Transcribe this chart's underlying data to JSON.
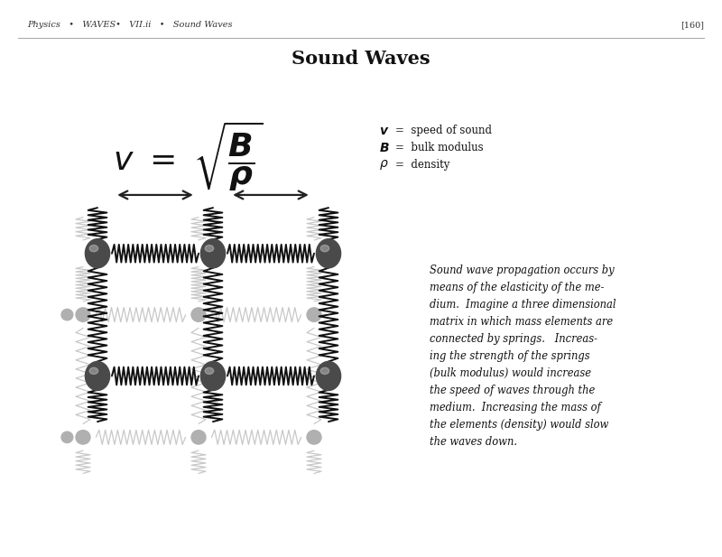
{
  "title": "Sound Waves",
  "header_left": "Physics   •   WAVES•   VII.ii   •   Sound Waves",
  "header_right": "[160]",
  "description": "Sound wave propagation occurs by\nmeans of the elasticity of the me-\ndium.  Imagine a three dimensional\nmatrix in which mass elements are\nconnected by springs.   Increas-\ning the strength of the springs\n(bulk modulus) would increase\nthe speed of waves through the\nmedium.  Increasing the mass of\nthe elements (density) would slow\nthe waves down.",
  "bg_color": "#ffffff",
  "spring_color_dark": "#111111",
  "spring_color_light": "#c8c8c8",
  "ball_color_dark": "#4a4a4a",
  "ball_color_light": "#b0b0b0",
  "arrow_color": "#222222",
  "header_color": "#333333",
  "title_color": "#111111",
  "text_color": "#111111",
  "fig_width": 8.0,
  "fig_height": 6.17,
  "dpi": 100
}
